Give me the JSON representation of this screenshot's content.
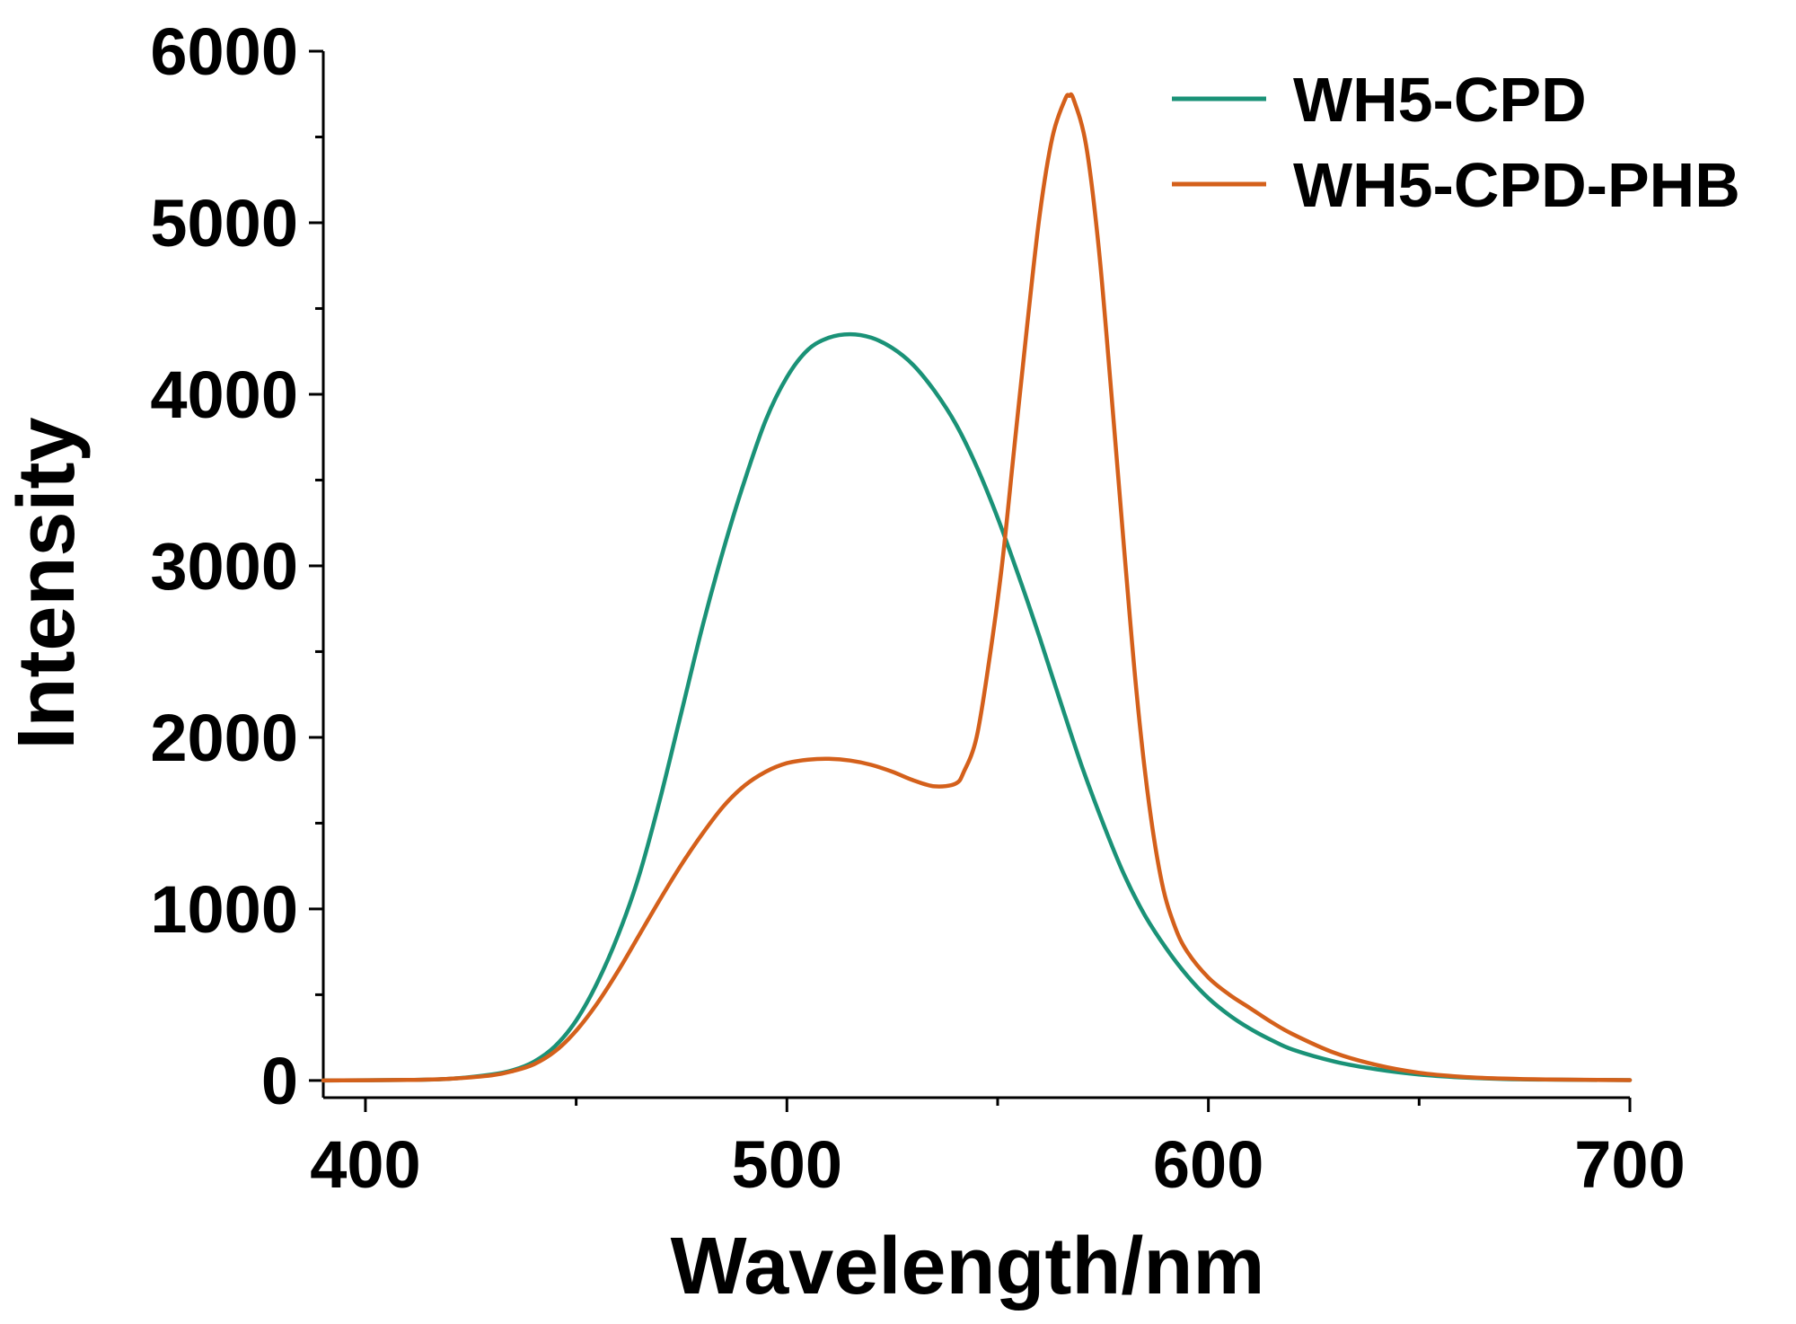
{
  "chart_data": {
    "type": "line",
    "title": "",
    "xlabel": "Wavelength/nm",
    "ylabel": "Intensity",
    "xlim": [
      390,
      700
    ],
    "ylim": [
      -100,
      6000
    ],
    "x_ticks": [
      400,
      500,
      600,
      700
    ],
    "x_minor_ticks": [
      450,
      550,
      650
    ],
    "y_ticks": [
      0,
      1000,
      2000,
      3000,
      4000,
      5000,
      6000
    ],
    "y_minor_ticks": [
      500,
      1500,
      2500,
      3500,
      4500,
      5500
    ],
    "grid": false,
    "legend_position": "top-right",
    "series": [
      {
        "name": "WH5-CPD",
        "color": "#1a9277",
        "points": [
          [
            390,
            0
          ],
          [
            410,
            3
          ],
          [
            420,
            10
          ],
          [
            430,
            35
          ],
          [
            435,
            60
          ],
          [
            440,
            110
          ],
          [
            445,
            200
          ],
          [
            450,
            350
          ],
          [
            455,
            570
          ],
          [
            460,
            850
          ],
          [
            465,
            1200
          ],
          [
            470,
            1650
          ],
          [
            475,
            2150
          ],
          [
            480,
            2650
          ],
          [
            485,
            3100
          ],
          [
            490,
            3500
          ],
          [
            495,
            3850
          ],
          [
            500,
            4100
          ],
          [
            505,
            4260
          ],
          [
            510,
            4330
          ],
          [
            515,
            4350
          ],
          [
            520,
            4330
          ],
          [
            525,
            4270
          ],
          [
            530,
            4170
          ],
          [
            535,
            4020
          ],
          [
            540,
            3830
          ],
          [
            545,
            3580
          ],
          [
            550,
            3280
          ],
          [
            555,
            2940
          ],
          [
            560,
            2580
          ],
          [
            565,
            2200
          ],
          [
            570,
            1830
          ],
          [
            575,
            1500
          ],
          [
            580,
            1200
          ],
          [
            585,
            960
          ],
          [
            590,
            770
          ],
          [
            595,
            610
          ],
          [
            600,
            480
          ],
          [
            605,
            380
          ],
          [
            610,
            300
          ],
          [
            615,
            235
          ],
          [
            620,
            180
          ],
          [
            630,
            110
          ],
          [
            640,
            65
          ],
          [
            650,
            35
          ],
          [
            660,
            18
          ],
          [
            670,
            9
          ],
          [
            680,
            5
          ],
          [
            700,
            2
          ]
        ]
      },
      {
        "name": "WH5-CPD-PHB",
        "color": "#d4601b",
        "points": [
          [
            390,
            0
          ],
          [
            410,
            3
          ],
          [
            420,
            10
          ],
          [
            430,
            30
          ],
          [
            435,
            55
          ],
          [
            440,
            95
          ],
          [
            445,
            170
          ],
          [
            450,
            290
          ],
          [
            455,
            450
          ],
          [
            460,
            640
          ],
          [
            465,
            850
          ],
          [
            470,
            1060
          ],
          [
            475,
            1260
          ],
          [
            480,
            1440
          ],
          [
            485,
            1600
          ],
          [
            490,
            1720
          ],
          [
            495,
            1800
          ],
          [
            500,
            1850
          ],
          [
            505,
            1870
          ],
          [
            510,
            1875
          ],
          [
            515,
            1865
          ],
          [
            520,
            1840
          ],
          [
            525,
            1800
          ],
          [
            530,
            1750
          ],
          [
            535,
            1715
          ],
          [
            540,
            1730
          ],
          [
            542,
            1800
          ],
          [
            545,
            2000
          ],
          [
            548,
            2450
          ],
          [
            551,
            3000
          ],
          [
            554,
            3700
          ],
          [
            557,
            4400
          ],
          [
            560,
            5050
          ],
          [
            563,
            5500
          ],
          [
            566,
            5720
          ],
          [
            567,
            5740
          ],
          [
            568,
            5720
          ],
          [
            571,
            5450
          ],
          [
            574,
            4850
          ],
          [
            577,
            4000
          ],
          [
            580,
            3100
          ],
          [
            583,
            2250
          ],
          [
            586,
            1600
          ],
          [
            589,
            1150
          ],
          [
            592,
            900
          ],
          [
            595,
            750
          ],
          [
            600,
            600
          ],
          [
            605,
            500
          ],
          [
            610,
            420
          ],
          [
            615,
            340
          ],
          [
            620,
            270
          ],
          [
            630,
            160
          ],
          [
            640,
            90
          ],
          [
            650,
            45
          ],
          [
            660,
            22
          ],
          [
            670,
            11
          ],
          [
            680,
            6
          ],
          [
            700,
            2
          ]
        ]
      }
    ]
  }
}
